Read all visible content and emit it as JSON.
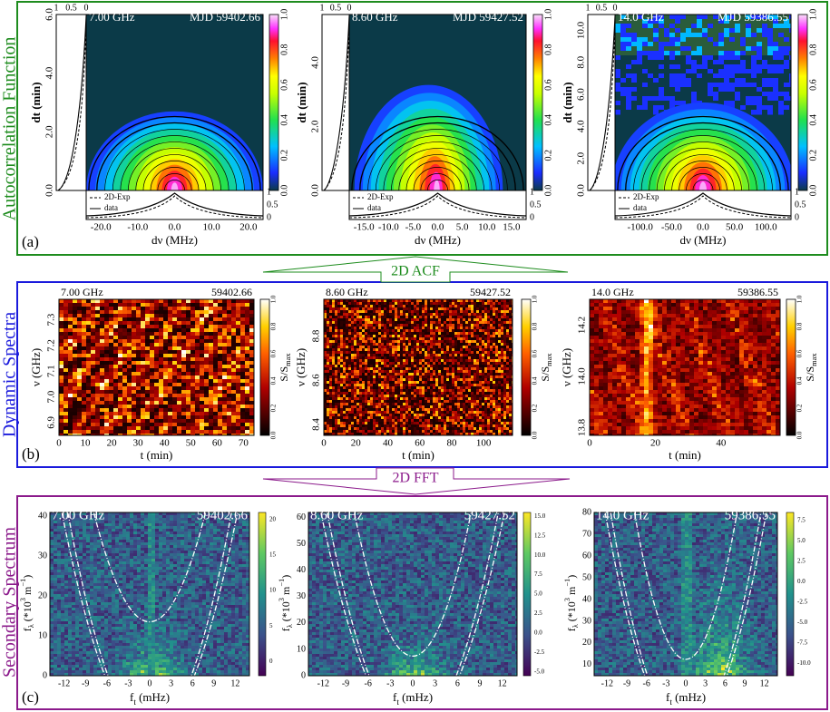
{
  "arrows": [
    "2D ACF",
    "2D FFT"
  ],
  "acf": {
    "title": "Autocorrelation Function",
    "label": "(a)",
    "legend": [
      "2D-Exp",
      "data"
    ],
    "marginal_ticks": [
      "1",
      "0.5",
      "0"
    ],
    "xlabel": "dν (MHz)",
    "ylabel": "dt (min)",
    "colorbar_ticks": [
      "0.0",
      "0.2",
      "0.4",
      "0.6",
      "0.8",
      "1.0"
    ],
    "panels": [
      {
        "freq": "7.00 GHz",
        "mjd": "MJD 59402.66",
        "xticks": [
          "-20.0",
          "-10.0",
          "0.0",
          "10.0",
          "20.0"
        ],
        "yticks": [
          "0.0",
          "2.0",
          "4.0",
          "6.0"
        ]
      },
      {
        "freq": "8.60 GHz",
        "mjd": "MJD 59427.52",
        "xticks": [
          "-15.0",
          "-10.0",
          "-5.0",
          "0.0",
          "5.0",
          "10.0",
          "15.0"
        ],
        "yticks": [
          "0.0",
          "2.0",
          "4.0"
        ]
      },
      {
        "freq": "14.0 GHz",
        "mjd": "MJD 59386.55",
        "xticks": [
          "-100.0",
          "-50.0",
          "0.0",
          "50.0",
          "100.0"
        ],
        "yticks": [
          "0.0",
          "2.0",
          "4.0",
          "6.0",
          "8.0",
          "10.0"
        ]
      }
    ]
  },
  "dynamic": {
    "title": "Dynamic Spectra",
    "label": "(b)",
    "xlabel": "t (min)",
    "ylabel": "ν (GHz)",
    "colorbar_label": [
      {
        "t": "S/S"
      },
      {
        "t": "max",
        "s": "sub"
      }
    ],
    "colorbar_ticks": [
      "0.0",
      "0.2",
      "0.4",
      "0.6",
      "0.8",
      "1.0"
    ],
    "panels": [
      {
        "freq": "7.00 GHz",
        "mjd": "59402.66",
        "xticks": [
          "0",
          "10",
          "20",
          "30",
          "40",
          "50",
          "60",
          "70"
        ],
        "yticks": [
          "6.9",
          "7.0",
          "7.1",
          "7.2",
          "7.3"
        ]
      },
      {
        "freq": "8.60 GHz",
        "mjd": "59427.52",
        "xticks": [
          "0",
          "20",
          "40",
          "60",
          "80",
          "100"
        ],
        "yticks": [
          "8.4",
          "8.6",
          "8.8"
        ]
      },
      {
        "freq": "14.0 GHz",
        "mjd": "59386.55",
        "xticks": [
          "0",
          "20",
          "40"
        ],
        "yticks": [
          "13.8",
          "14.0",
          "14.2"
        ]
      }
    ]
  },
  "secondary": {
    "title": "Secondary Spectrum",
    "label": "(c)",
    "xlabel": [
      {
        "t": "f"
      },
      {
        "t": "t",
        "s": "sub"
      },
      {
        "t": " (mHz)"
      }
    ],
    "ylabel": [
      {
        "t": "f"
      },
      {
        "t": "λ",
        "s": "sub"
      },
      {
        "t": " (*10"
      },
      {
        "t": "3",
        "s": "sup"
      },
      {
        "t": " m"
      },
      {
        "t": "−1",
        "s": "sup"
      },
      {
        "t": ")"
      }
    ],
    "panels": [
      {
        "freq": "7.00 GHz",
        "mjd": "59402.66",
        "xticks": [
          "-12",
          "-9",
          "-6",
          "-3",
          "0",
          "3",
          "6",
          "9",
          "12"
        ],
        "yticks": [
          "0",
          "10",
          "20",
          "30",
          "40"
        ],
        "colorbar_ticks": [
          "0",
          "5",
          "10",
          "15",
          "20"
        ]
      },
      {
        "freq": "8.60 GHz",
        "mjd": "59427.52",
        "xticks": [
          "-12",
          "-9",
          "-6",
          "-3",
          "0",
          "3",
          "6",
          "9",
          "12"
        ],
        "yticks": [
          "0",
          "10",
          "20",
          "30",
          "40",
          "50",
          "60"
        ],
        "colorbar_ticks": [
          "-5.0",
          "-2.5",
          "0.0",
          "2.5",
          "5.0",
          "7.5",
          "10.0",
          "12.5",
          "15.0"
        ]
      },
      {
        "freq": "14.0 GHz",
        "mjd": "59386.55",
        "xticks": [
          "-12",
          "-9",
          "-6",
          "-3",
          "0",
          "3",
          "6",
          "9",
          "12"
        ],
        "yticks": [
          "10",
          "20",
          "30",
          "40",
          "50",
          "60",
          "70",
          "80"
        ],
        "colorbar_ticks": [
          "-10.0",
          "-7.5",
          "-5.0",
          "-2.5",
          "0.0",
          "2.5",
          "5.0",
          "7.5"
        ]
      }
    ]
  }
}
